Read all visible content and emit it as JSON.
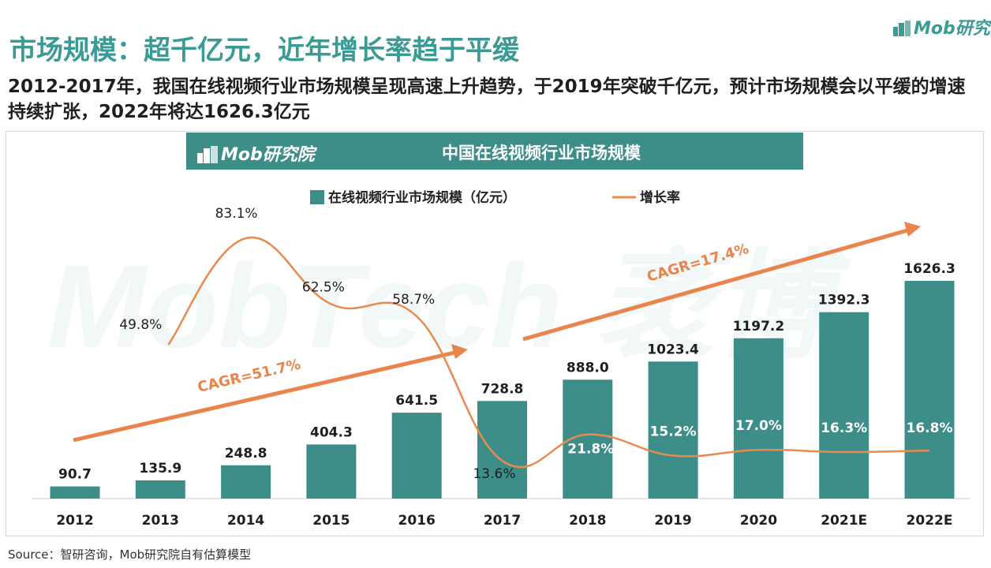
{
  "header": {
    "title": "市场规模：超千亿元，近年增长率趋于平缓",
    "logo": "Mob研究院",
    "subtitle": "2012-2017年，我国在线视频行业市场规模呈现高速上升趋势，于2019年突破千亿元，预计市场规模会以平缓的增速持续扩张，2022年将达1626.3亿元"
  },
  "chart_banner": {
    "logo": "Mob研究院",
    "title": "中国在线视频行业市场规模"
  },
  "watermark": "MobTech 袤博",
  "source": "Source：智研咨询，Mob研究院自有估算模型",
  "colors": {
    "accent": "#3a9a94",
    "bar": "#3d8d89",
    "line": "#e98a4e",
    "arrow": "#e9854c",
    "banner": "#3d8d89"
  },
  "chart_data": {
    "type": "bar",
    "categories": [
      "2012",
      "2013",
      "2014",
      "2015",
      "2016",
      "2017",
      "2018",
      "2019",
      "2020",
      "2021E",
      "2022E"
    ],
    "series": [
      {
        "name": "在线视频行业市场规模（亿元）",
        "type": "bar",
        "values": [
          90.7,
          135.9,
          248.8,
          404.3,
          641.5,
          728.8,
          888.0,
          1023.4,
          1197.2,
          1392.3,
          1626.3
        ],
        "labels": [
          "90.7",
          "135.9",
          "248.8",
          "404.3",
          "641.5",
          "728.8",
          "888.0",
          "1023.4",
          "1197.2",
          "1392.3",
          "1626.3"
        ]
      },
      {
        "name": "增长率",
        "type": "line",
        "axis": "secondary",
        "values": [
          null,
          49.8,
          83.1,
          62.5,
          58.7,
          13.6,
          21.8,
          15.2,
          17.0,
          16.3,
          16.8
        ],
        "labels": [
          "",
          "49.8%",
          "83.1%",
          "62.5%",
          "58.7%",
          "13.6%",
          "21.8%",
          "15.2%",
          "17.0%",
          "16.3%",
          "16.8%"
        ]
      }
    ],
    "annotations": [
      "CAGR=51.7%",
      "CAGR=17.4%"
    ],
    "legend": "top",
    "grid": false
  }
}
